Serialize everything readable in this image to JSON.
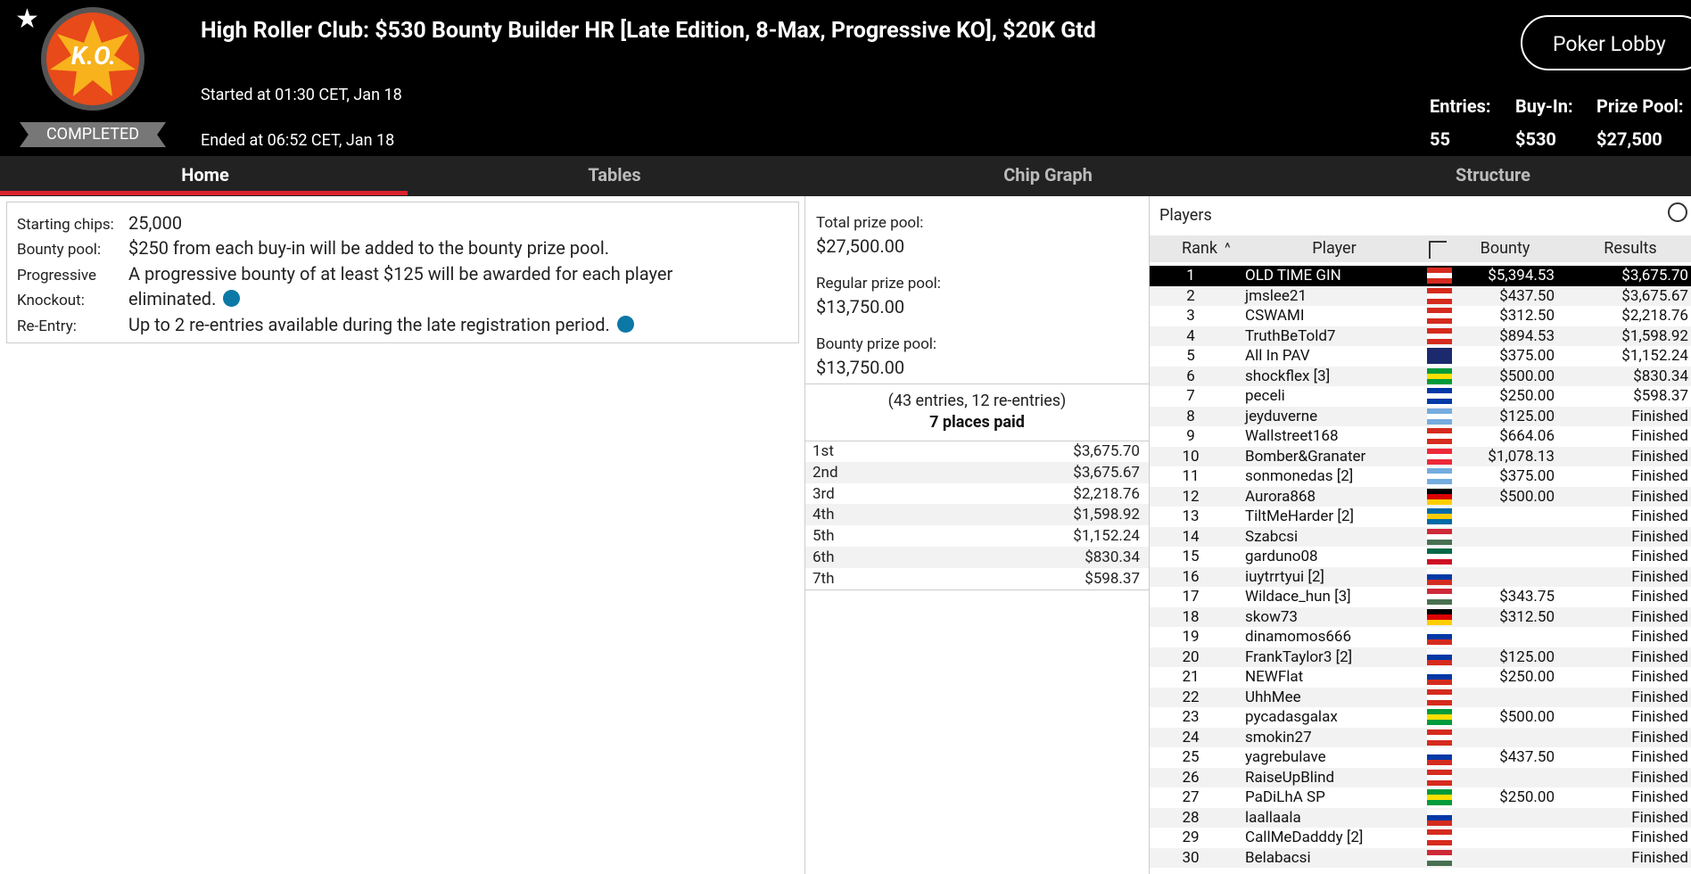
{
  "header": {
    "logo": "K.O.",
    "status": "COMPLETED",
    "title": "High Roller Club: $530 Bounty Builder HR [Late Edition, 8-Max, Progressive KO], $20K Gtd",
    "started": "Started at 01:30 CET, Jan 18",
    "ended": "Ended at 06:52 CET, Jan 18",
    "button": "Poker Lobby",
    "stats": [
      {
        "label": "Entries:",
        "value": "55"
      },
      {
        "label": "Buy-In:",
        "value": "$530"
      },
      {
        "label": "Prize Pool:",
        "value": "$27,500"
      }
    ]
  },
  "tabs": [
    "Home",
    "Tables",
    "Chip Graph",
    "Structure"
  ],
  "info": [
    {
      "label": "Starting chips:",
      "value": "25,000"
    },
    {
      "label": "Bounty pool:",
      "value": "$250 from each buy-in will be added to the bounty prize pool."
    },
    {
      "label": "Progressive Knockout:",
      "value": "A progressive bounty of at least $125 will be awarded for each player eliminated."
    },
    {
      "label": "Re-Entry:",
      "value": "Up to 2 re-entries available during the late registration period."
    }
  ],
  "prizes": {
    "pools": [
      {
        "label": "Total prize pool:",
        "value": "$27,500.00"
      },
      {
        "label": "Regular prize pool:",
        "value": "$13,750.00"
      },
      {
        "label": "Bounty prize pool:",
        "value": "$13,750.00"
      }
    ],
    "note": "(43 entries, 12 re-entries)",
    "paid": "7 places paid",
    "places": [
      [
        "1st",
        "$3,675.70"
      ],
      [
        "2nd",
        "$3,675.67"
      ],
      [
        "3rd",
        "$2,218.76"
      ],
      [
        "4th",
        "$1,598.92"
      ],
      [
        "5th",
        "$1,152.24"
      ],
      [
        "6th",
        "$830.34"
      ],
      [
        "7th",
        "$598.37"
      ]
    ]
  },
  "players": {
    "title": "Players",
    "columns": [
      "Rank",
      "Player",
      "Bounty",
      "Results"
    ],
    "rows": [
      [
        1,
        "OLD TIME GIN",
        "$5,394.53",
        "$3,675.70",
        [
          "#d52b1e",
          "#fff",
          "#d52b1e"
        ]
      ],
      [
        2,
        "jmslee21",
        "$437.50",
        "$3,675.67",
        [
          "#d52b1e",
          "#fff",
          "#d52b1e"
        ]
      ],
      [
        3,
        "CSWAMI",
        "$312.50",
        "$2,218.76",
        [
          "#d52b1e",
          "#fff",
          "#d52b1e"
        ]
      ],
      [
        4,
        "TruthBeTold7",
        "$894.53",
        "$1,598.92",
        [
          "#d52b1e",
          "#fff",
          "#d52b1e"
        ]
      ],
      [
        5,
        "All In PAV",
        "$375.00",
        "$1,152.24",
        [
          "#1a2a6c",
          "#1a2a6c",
          "#1a2a6c"
        ]
      ],
      [
        6,
        "shockflex [3]",
        "$500.00",
        "$830.34",
        [
          "#009b3a",
          "#fedf00",
          "#009b3a"
        ]
      ],
      [
        7,
        "peceli",
        "$250.00",
        "$598.37",
        [
          "#0038a8",
          "#fff",
          "#0038a8"
        ]
      ],
      [
        8,
        "jeyduverne",
        "$125.00",
        "Finished",
        [
          "#74acdf",
          "#fff",
          "#74acdf"
        ]
      ],
      [
        9,
        "Wallstreet168",
        "$664.06",
        "Finished",
        [
          "#d52b1e",
          "#fff",
          "#d52b1e"
        ]
      ],
      [
        10,
        "Bomber&Granater",
        "$1,078.13",
        "Finished",
        [
          "#ed2939",
          "#fff",
          "#ed2939"
        ]
      ],
      [
        11,
        "sonmonedas [2]",
        "$375.00",
        "Finished",
        [
          "#74acdf",
          "#fff",
          "#74acdf"
        ]
      ],
      [
        12,
        "Aurora868",
        "$500.00",
        "Finished",
        [
          "#000",
          "#dd0000",
          "#ffce00"
        ]
      ],
      [
        13,
        "TiltMeHarder [2]",
        null,
        "Finished",
        [
          "#006aa7",
          "#fecc00",
          "#006aa7"
        ]
      ],
      [
        14,
        "Szabcsi",
        null,
        "Finished",
        [
          "#ce2939",
          "#fff",
          "#477050"
        ]
      ],
      [
        15,
        "garduno08",
        null,
        "Finished",
        [
          "#006847",
          "#fff",
          "#ce1126"
        ]
      ],
      [
        16,
        "iuytrrtyui [2]",
        null,
        "Finished",
        [
          "#fff",
          "#0039a6",
          "#d52b1e"
        ]
      ],
      [
        17,
        "Wildace_hun [3]",
        "$343.75",
        "Finished",
        [
          "#ce2939",
          "#fff",
          "#477050"
        ]
      ],
      [
        18,
        "skow73",
        "$312.50",
        "Finished",
        [
          "#000",
          "#dd0000",
          "#ffce00"
        ]
      ],
      [
        19,
        "dinamomos666",
        null,
        "Finished",
        [
          "#fff",
          "#0039a6",
          "#d52b1e"
        ]
      ],
      [
        20,
        "FrankTaylor3 [2]",
        "$125.00",
        "Finished",
        [
          "#fff",
          "#0039a6",
          "#d52b1e"
        ]
      ],
      [
        21,
        "NEWFlat",
        "$250.00",
        "Finished",
        [
          "#fff",
          "#0039a6",
          "#d52b1e"
        ]
      ],
      [
        22,
        "UhhMee",
        null,
        "Finished",
        [
          "#d52b1e",
          "#fff",
          "#d52b1e"
        ]
      ],
      [
        23,
        "pycadasgalax",
        "$500.00",
        "Finished",
        [
          "#009b3a",
          "#fedf00",
          "#009b3a"
        ]
      ],
      [
        24,
        "smokin27",
        null,
        "Finished",
        [
          "#d52b1e",
          "#fff",
          "#d52b1e"
        ]
      ],
      [
        25,
        "yagrebulave",
        "$437.50",
        "Finished",
        [
          "#fff",
          "#0039a6",
          "#d52b1e"
        ]
      ],
      [
        26,
        "RaiseUpBlind",
        null,
        "Finished",
        [
          "#d52b1e",
          "#fff",
          "#d52b1e"
        ]
      ],
      [
        27,
        "PaDiLhA SP",
        "$250.00",
        "Finished",
        [
          "#009b3a",
          "#fedf00",
          "#009b3a"
        ]
      ],
      [
        28,
        "laallaala",
        null,
        "Finished",
        [
          "#fff",
          "#0039a6",
          "#d52b1e"
        ]
      ],
      [
        29,
        "CallMeDadddy [2]",
        null,
        "Finished",
        [
          "#d52b1e",
          "#fff",
          "#d52b1e"
        ]
      ],
      [
        30,
        "Belabacsi",
        null,
        "Finished",
        [
          "#ce2939",
          "#fff",
          "#477050"
        ]
      ]
    ]
  }
}
